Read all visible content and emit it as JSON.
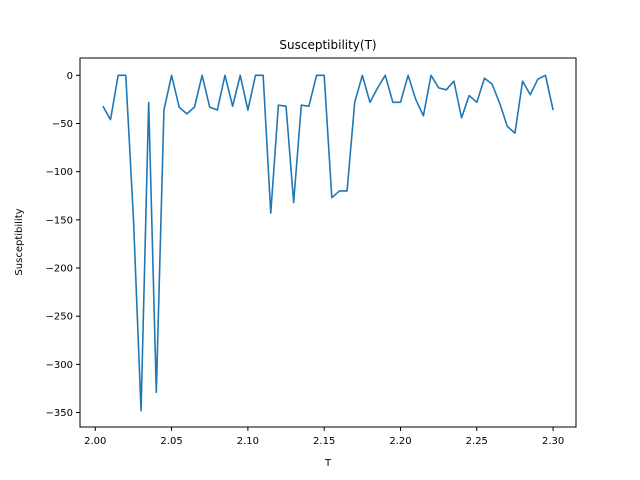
{
  "chart_data": {
    "type": "line",
    "title": "Susceptibility(T)",
    "xlabel": "T",
    "ylabel": "Susceptibility",
    "xlim": [
      1.99,
      2.315
    ],
    "ylim": [
      -365,
      18
    ],
    "xticks": [
      2.0,
      2.05,
      2.1,
      2.15,
      2.2,
      2.25,
      2.3
    ],
    "xtick_labels": [
      "2.00",
      "2.05",
      "2.10",
      "2.15",
      "2.20",
      "2.25",
      "2.30"
    ],
    "yticks": [
      0,
      -50,
      -100,
      -150,
      -200,
      -250,
      -300,
      -350
    ],
    "ytick_labels": [
      "0",
      "−50",
      "−100",
      "−150",
      "−200",
      "−250",
      "−300",
      "−350"
    ],
    "grid": false,
    "series": [
      {
        "color": "#1f77b4",
        "x": [
          2.005,
          2.01,
          2.015,
          2.02,
          2.025,
          2.03,
          2.035,
          2.04,
          2.045,
          2.05,
          2.055,
          2.06,
          2.065,
          2.07,
          2.075,
          2.08,
          2.085,
          2.09,
          2.095,
          2.1,
          2.105,
          2.11,
          2.115,
          2.12,
          2.125,
          2.13,
          2.135,
          2.14,
          2.145,
          2.15,
          2.155,
          2.16,
          2.165,
          2.17,
          2.175,
          2.18,
          2.185,
          2.19,
          2.195,
          2.2,
          2.205,
          2.21,
          2.215,
          2.22,
          2.225,
          2.23,
          2.235,
          2.24,
          2.245,
          2.25,
          2.255,
          2.26,
          2.265,
          2.27,
          2.275,
          2.28,
          2.285,
          2.29,
          2.295,
          2.3
        ],
        "values": [
          -32,
          -46,
          0,
          0,
          -148,
          -348,
          -28,
          -329,
          -36,
          0,
          -33,
          -40,
          -33,
          0,
          -33,
          -36,
          0,
          -32,
          0,
          -36,
          0,
          0,
          -143,
          -31,
          -32,
          -132,
          -31,
          -32,
          0,
          0,
          -127,
          -120,
          -120,
          -28,
          0,
          -28,
          -13,
          0,
          -28,
          -28,
          0,
          -25,
          -42,
          0,
          -13,
          -15,
          -6,
          -44,
          -21,
          -28,
          -3,
          -9,
          -29,
          -53,
          -60,
          -6,
          -20,
          -4,
          0,
          -36
        ]
      }
    ]
  }
}
